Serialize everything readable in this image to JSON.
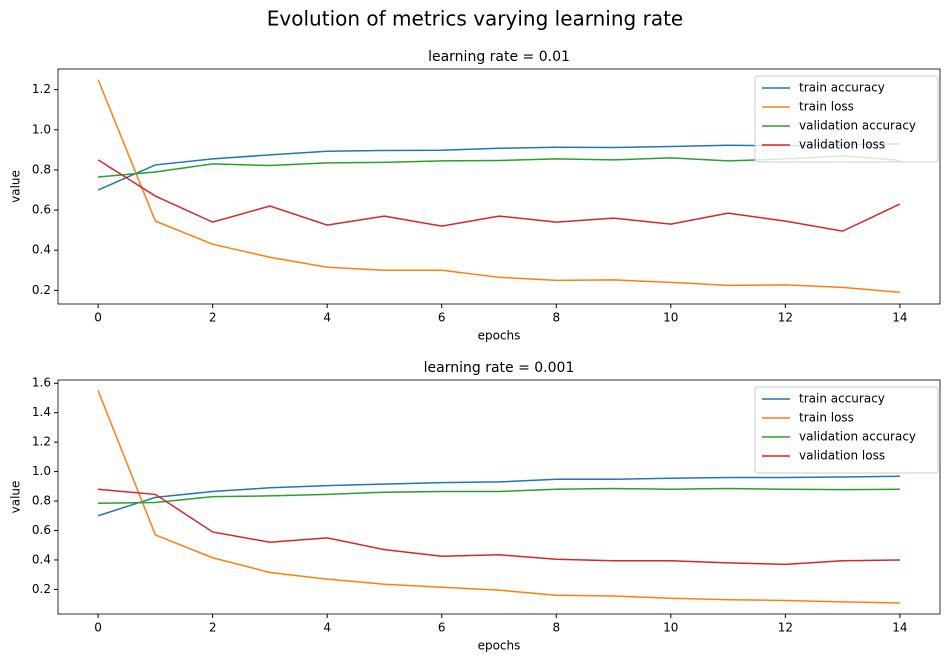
{
  "title": "Evolution of metrics varying learning rate",
  "chart_data": [
    {
      "type": "line",
      "title": "learning rate = 0.01",
      "xlabel": "epochs",
      "ylabel": "value",
      "x": [
        0,
        1,
        2,
        3,
        4,
        5,
        6,
        7,
        8,
        9,
        10,
        11,
        12,
        13,
        14
      ],
      "series": [
        {
          "name": "train accuracy",
          "color": "#1f77b4",
          "values": [
            0.7,
            0.825,
            0.855,
            0.875,
            0.893,
            0.897,
            0.898,
            0.908,
            0.913,
            0.912,
            0.917,
            0.923,
            0.92,
            0.925,
            0.93
          ]
        },
        {
          "name": "train loss",
          "color": "#ff7f0e",
          "values": [
            1.25,
            0.545,
            0.43,
            0.365,
            0.315,
            0.3,
            0.3,
            0.265,
            0.25,
            0.252,
            0.24,
            0.225,
            0.227,
            0.215,
            0.19
          ]
        },
        {
          "name": "validation accuracy",
          "color": "#2ca02c",
          "values": [
            0.765,
            0.79,
            0.83,
            0.822,
            0.835,
            0.838,
            0.845,
            0.847,
            0.855,
            0.85,
            0.86,
            0.845,
            0.855,
            0.87,
            0.848
          ]
        },
        {
          "name": "validation loss",
          "color": "#d62728",
          "values": [
            0.85,
            0.67,
            0.54,
            0.62,
            0.525,
            0.57,
            0.52,
            0.57,
            0.54,
            0.56,
            0.53,
            0.585,
            0.545,
            0.495,
            0.63
          ]
        }
      ],
      "xlim": [
        -0.7,
        14.7
      ],
      "xticks": [
        0,
        2,
        4,
        6,
        8,
        10,
        12,
        14
      ],
      "ylim": [
        0.132,
        1.303
      ],
      "yticks": [
        0.2,
        0.4,
        0.6,
        0.8,
        {
          "value": 1,
          "label": "1.0"
        },
        1.2
      ],
      "legend": "upper right"
    },
    {
      "type": "line",
      "title": "learning rate = 0.001",
      "xlabel": "epochs",
      "ylabel": "value",
      "x": [
        0,
        1,
        2,
        3,
        4,
        5,
        6,
        7,
        8,
        9,
        10,
        11,
        12,
        13,
        14
      ],
      "series": [
        {
          "name": "train accuracy",
          "color": "#1f77b4",
          "values": [
            0.7,
            0.825,
            0.865,
            0.89,
            0.905,
            0.915,
            0.925,
            0.93,
            0.948,
            0.948,
            0.955,
            0.96,
            0.96,
            0.963,
            0.968
          ]
        },
        {
          "name": "train loss",
          "color": "#ff7f0e",
          "values": [
            1.55,
            0.57,
            0.415,
            0.315,
            0.27,
            0.235,
            0.215,
            0.195,
            0.16,
            0.155,
            0.14,
            0.13,
            0.125,
            0.115,
            0.108
          ]
        },
        {
          "name": "validation accuracy",
          "color": "#2ca02c",
          "values": [
            0.785,
            0.79,
            0.83,
            0.835,
            0.845,
            0.86,
            0.865,
            0.865,
            0.88,
            0.885,
            0.88,
            0.885,
            0.88,
            0.878,
            0.88
          ]
        },
        {
          "name": "validation loss",
          "color": "#d62728",
          "values": [
            0.88,
            0.845,
            0.59,
            0.52,
            0.55,
            0.47,
            0.425,
            0.435,
            0.405,
            0.395,
            0.395,
            0.38,
            0.37,
            0.395,
            0.4
          ]
        }
      ],
      "xlim": [
        -0.7,
        14.7
      ],
      "xticks": [
        0,
        2,
        4,
        6,
        8,
        10,
        12,
        14
      ],
      "ylim": [
        0.033,
        1.622
      ],
      "yticks": [
        0.2,
        0.4,
        0.6,
        0.8,
        {
          "value": 1,
          "label": "1.0"
        },
        1.2,
        1.4,
        1.6
      ],
      "legend": "upper right"
    }
  ]
}
